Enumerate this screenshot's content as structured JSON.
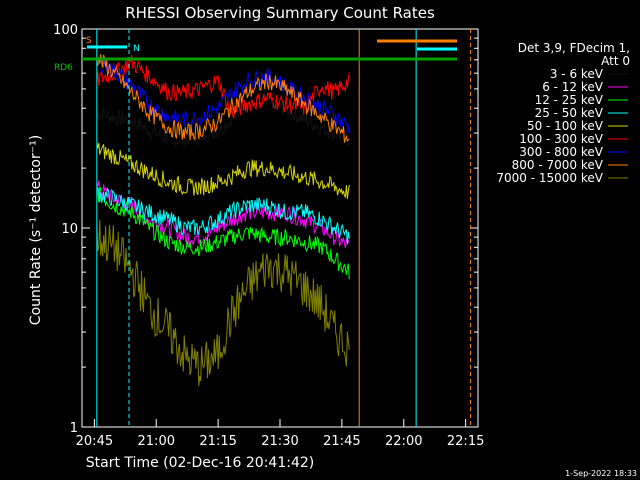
{
  "chart_data": {
    "type": "line",
    "title": "RHESSI Observing Summary Count Rates",
    "xlabel": "Start Time (02-Dec-16 20:41:42)",
    "ylabel": "Count Rate (s⁻¹ detector⁻¹)",
    "yscale": "log",
    "ylim": [
      1,
      100
    ],
    "xlim_minutes": [
      20.7,
      22.3
    ],
    "x_ticks": [
      {
        "label": "20:45",
        "t": 20.75
      },
      {
        "label": "21:00",
        "t": 21.0
      },
      {
        "label": "21:15",
        "t": 21.25
      },
      {
        "label": "21:30",
        "t": 21.5
      },
      {
        "label": "21:45",
        "t": 21.75
      },
      {
        "label": "22:00",
        "t": 22.0
      },
      {
        "label": "22:15",
        "t": 22.25
      }
    ],
    "y_ticks": [
      {
        "label": "100",
        "v": 100
      },
      {
        "label": "10",
        "v": 10
      },
      {
        "label": "1",
        "v": 1
      }
    ],
    "legend": {
      "position": "right",
      "header": [
        "Det 3,9, FDecim 1,",
        "Att 0"
      ],
      "entries": [
        {
          "label": "3 - 6 keV",
          "color": "#000000"
        },
        {
          "label": "6 - 12 keV",
          "color": "#ff00ff"
        },
        {
          "label": "12 - 25 keV",
          "color": "#00ff00"
        },
        {
          "label": "25 - 50 keV",
          "color": "#00ffff"
        },
        {
          "label": "50 - 100 keV",
          "color": "#d4d400"
        },
        {
          "label": "100 - 300 keV",
          "color": "#ff0000"
        },
        {
          "label": "300 - 800 keV",
          "color": "#0000ff"
        },
        {
          "label": "800 - 7000 keV",
          "color": "#ff8000"
        },
        {
          "label": "7000 - 15000 keV",
          "color": "#808000"
        }
      ]
    },
    "series": [
      {
        "name": "3 - 6 keV",
        "color": "#000000",
        "x": [
          20.76,
          20.83,
          20.9,
          20.97,
          21.05,
          21.12,
          21.18,
          21.25,
          21.3,
          21.37,
          21.45,
          21.52,
          21.6,
          21.67,
          21.72,
          21.78
        ],
        "y": [
          38,
          36,
          35,
          31,
          28,
          28,
          29,
          31,
          35,
          42,
          45,
          40,
          35,
          32,
          30,
          28
        ]
      },
      {
        "name": "6 - 12 keV",
        "color": "#ff00ff",
        "x": [
          20.76,
          20.83,
          20.9,
          20.97,
          21.05,
          21.12,
          21.18,
          21.25,
          21.3,
          21.37,
          21.45,
          21.52,
          21.6,
          21.67,
          21.72,
          21.78
        ],
        "y": [
          16,
          14,
          13,
          11,
          10,
          9,
          9,
          10,
          11,
          12,
          12,
          12,
          11,
          10,
          9,
          8
        ]
      },
      {
        "name": "12 - 25 keV",
        "color": "#00ff00",
        "x": [
          20.76,
          20.83,
          20.9,
          20.97,
          21.05,
          21.12,
          21.18,
          21.25,
          21.3,
          21.37,
          21.45,
          21.52,
          21.6,
          21.67,
          21.72,
          21.78
        ],
        "y": [
          15,
          13,
          12,
          10,
          8.5,
          8,
          8,
          8.5,
          9,
          9.5,
          9,
          9,
          8.5,
          8,
          7,
          6
        ]
      },
      {
        "name": "25 - 50 keV",
        "color": "#00ffff",
        "x": [
          20.76,
          20.83,
          20.9,
          20.97,
          21.05,
          21.12,
          21.18,
          21.25,
          21.3,
          21.37,
          21.45,
          21.52,
          21.6,
          21.67,
          21.72,
          21.78
        ],
        "y": [
          15,
          14,
          13,
          12,
          11,
          10,
          10,
          11,
          12,
          13,
          13,
          12,
          12,
          11,
          10,
          9
        ]
      },
      {
        "name": "50 - 100 keV",
        "color": "#d4d400",
        "x": [
          20.76,
          20.83,
          20.9,
          20.97,
          21.05,
          21.12,
          21.18,
          21.25,
          21.3,
          21.37,
          21.45,
          21.52,
          21.6,
          21.67,
          21.72,
          21.78
        ],
        "y": [
          25,
          23,
          21,
          19,
          17,
          16,
          16,
          17,
          18,
          20,
          20,
          19,
          18,
          17,
          16,
          15
        ]
      },
      {
        "name": "100 - 300 keV",
        "color": "#ff0000",
        "x": [
          20.76,
          20.83,
          20.9,
          20.97,
          21.05,
          21.12,
          21.18,
          21.25,
          21.3,
          21.37,
          21.45,
          21.52,
          21.6,
          21.67,
          21.72,
          21.78
        ],
        "y": [
          55,
          60,
          68,
          58,
          48,
          48,
          50,
          55,
          38,
          42,
          45,
          42,
          40,
          52,
          48,
          55
        ]
      },
      {
        "name": "300 - 800 keV",
        "color": "#0000ff",
        "x": [
          20.76,
          20.83,
          20.9,
          20.97,
          21.05,
          21.12,
          21.18,
          21.25,
          21.3,
          21.37,
          21.45,
          21.52,
          21.6,
          21.67,
          21.72,
          21.78
        ],
        "y": [
          70,
          62,
          52,
          42,
          36,
          35,
          36,
          40,
          47,
          55,
          58,
          52,
          45,
          40,
          37,
          32
        ]
      },
      {
        "name": "800 - 7000 keV",
        "color": "#ff8000",
        "x": [
          20.76,
          20.83,
          20.9,
          20.97,
          21.05,
          21.12,
          21.18,
          21.25,
          21.3,
          21.37,
          21.45,
          21.52,
          21.6,
          21.67,
          21.72,
          21.78
        ],
        "y": [
          72,
          60,
          48,
          38,
          32,
          30,
          31,
          34,
          40,
          48,
          55,
          50,
          42,
          36,
          32,
          28
        ]
      },
      {
        "name": "7000 - 15000 keV",
        "color": "#808000",
        "x": [
          20.76,
          20.83,
          20.9,
          20.97,
          21.05,
          21.12,
          21.18,
          21.25,
          21.3,
          21.37,
          21.45,
          21.52,
          21.6,
          21.67,
          21.72,
          21.78
        ],
        "y": [
          9,
          8,
          6,
          4,
          3,
          2.2,
          2,
          2.3,
          3.5,
          5,
          6.5,
          6,
          5,
          4,
          3,
          2.5
        ]
      }
    ],
    "annotations": [
      {
        "label": "S",
        "color": "#ff8000"
      },
      {
        "label": "N",
        "color": "#00ffff"
      },
      {
        "label": "RD6",
        "color": "#00c000"
      }
    ]
  },
  "timestamp": "1-Sep-2022 18:33"
}
